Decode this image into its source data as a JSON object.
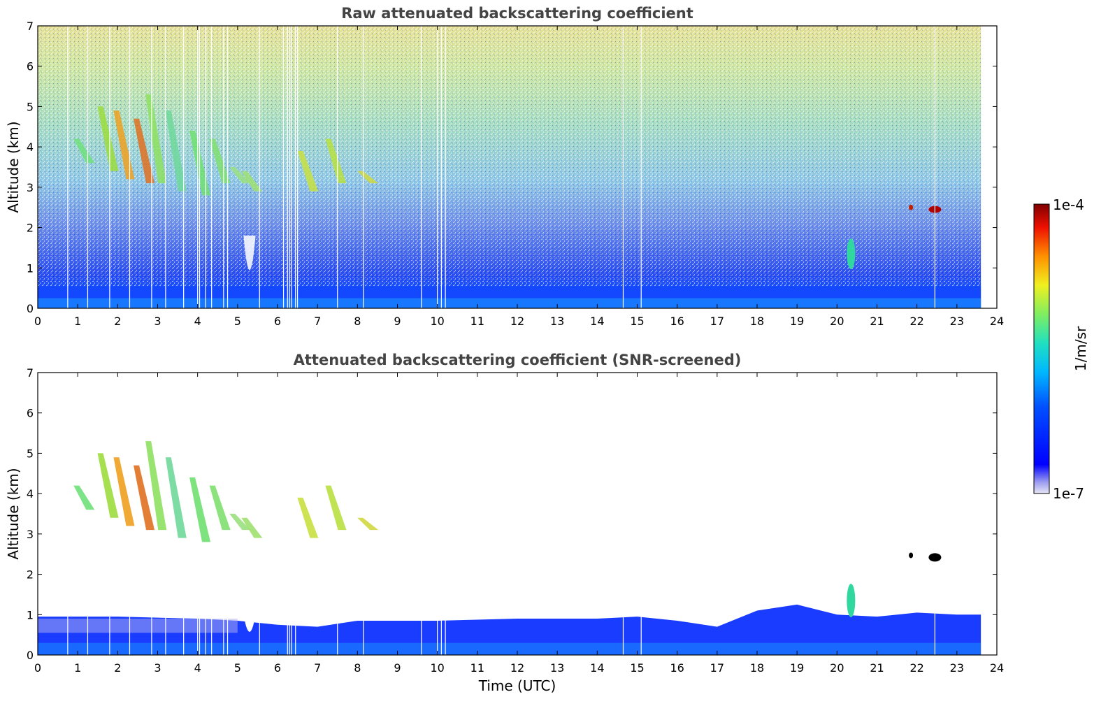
{
  "chart_data": [
    {
      "type": "heatmap",
      "title": "Raw attenuated backscattering coefficient",
      "xlabel": "",
      "ylabel": "Altitude (km)",
      "xlim": [
        0,
        24
      ],
      "ylim": [
        0,
        7
      ],
      "xticks": [
        "0",
        "1",
        "2",
        "3",
        "4",
        "5",
        "6",
        "7",
        "8",
        "9",
        "10",
        "11",
        "12",
        "13",
        "14",
        "15",
        "16",
        "17",
        "18",
        "19",
        "20",
        "21",
        "22",
        "23",
        "24"
      ],
      "yticks": [
        "0",
        "1",
        "2",
        "3",
        "4",
        "5",
        "6",
        "7"
      ],
      "data_end_time": 23.6,
      "grid": false
    },
    {
      "type": "heatmap",
      "title": "Attenuated backscattering coefficient (SNR-screened)",
      "xlabel": "Time (UTC)",
      "ylabel": "Altitude (km)",
      "xlim": [
        0,
        24
      ],
      "ylim": [
        0,
        7
      ],
      "xticks": [
        "0",
        "1",
        "2",
        "3",
        "4",
        "5",
        "6",
        "7",
        "8",
        "9",
        "10",
        "11",
        "12",
        "13",
        "14",
        "15",
        "16",
        "17",
        "18",
        "19",
        "20",
        "21",
        "22",
        "23",
        "24"
      ],
      "yticks": [
        "0",
        "1",
        "2",
        "3",
        "4",
        "5",
        "6",
        "7"
      ],
      "data_end_time": 23.6,
      "grid": false
    }
  ],
  "colorbar": {
    "label": "1/m/sr",
    "max_label": "1e-4",
    "min_label": "1e-7",
    "scale": "log",
    "range": [
      1e-07,
      0.0001
    ],
    "colormap": "jet",
    "colors": [
      "#e4e4f4",
      "#0000ff",
      "#00c8ff",
      "#50e080",
      "#f0f020",
      "#ff6000",
      "#800000"
    ]
  }
}
